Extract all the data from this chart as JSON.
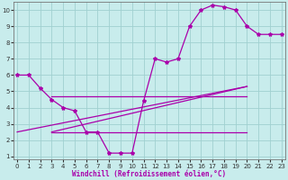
{
  "hours": [
    0,
    1,
    2,
    3,
    4,
    5,
    6,
    7,
    8,
    9,
    10,
    11,
    12,
    13,
    14,
    15,
    16,
    17,
    18,
    19,
    20,
    21,
    22,
    23
  ],
  "main_line": [
    6.0,
    6.0,
    5.2,
    4.5,
    4.0,
    3.8,
    2.5,
    2.5,
    1.2,
    1.2,
    1.2,
    4.4,
    7.0,
    6.8,
    7.0,
    9.0,
    10.0,
    10.3,
    10.2,
    10.0,
    9.0,
    8.5,
    8.5,
    8.5
  ],
  "envelope": [
    {
      "x": [
        3,
        20
      ],
      "y": [
        2.5,
        5.3
      ]
    },
    {
      "x": [
        3,
        20
      ],
      "y": [
        2.5,
        2.5
      ]
    },
    {
      "x": [
        3,
        20
      ],
      "y": [
        4.7,
        4.7
      ]
    },
    {
      "x": [
        3,
        20
      ],
      "y": [
        2.5,
        5.3
      ]
    }
  ],
  "env_line1_x": [
    3,
    20
  ],
  "env_line1_y": [
    2.5,
    5.3
  ],
  "env_line2_x": [
    3,
    20
  ],
  "env_line2_y": [
    2.5,
    2.5
  ],
  "env_line3_x": [
    3,
    20
  ],
  "env_line3_y": [
    4.7,
    4.7
  ],
  "env_line4_x": [
    3,
    20
  ],
  "env_line4_y": [
    2.5,
    5.3
  ],
  "bg_color": "#c8ecec",
  "grid_color": "#a0d0d0",
  "line_color": "#aa00aa",
  "marker": "*",
  "xlabel": "Windchill (Refroidissement éolien,°C)",
  "xlim": [
    0,
    23
  ],
  "ylim": [
    0.8,
    10.5
  ],
  "xticks": [
    0,
    1,
    2,
    3,
    4,
    5,
    6,
    7,
    8,
    9,
    10,
    11,
    12,
    13,
    14,
    15,
    16,
    17,
    18,
    19,
    20,
    21,
    22,
    23
  ],
  "yticks": [
    1,
    2,
    3,
    4,
    5,
    6,
    7,
    8,
    9,
    10
  ],
  "tick_fontsize": 5,
  "xlabel_fontsize": 5.5
}
